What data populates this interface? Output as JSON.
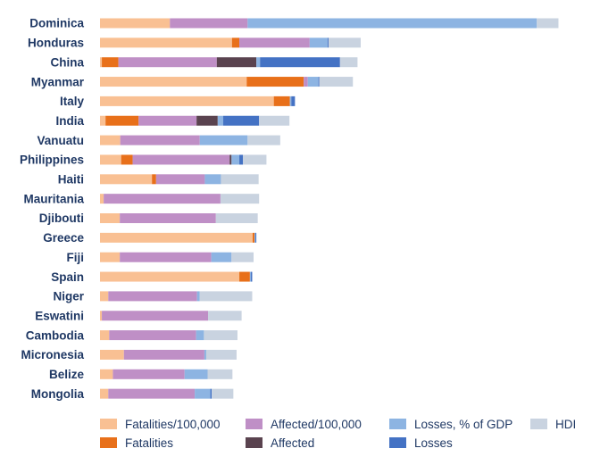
{
  "chart_data": {
    "type": "bar",
    "orientation": "horizontal",
    "stacked": true,
    "title": "",
    "xlabel": "",
    "ylabel": "",
    "grid": false,
    "legend_position": "bottom",
    "xlim": [
      0,
      100
    ],
    "categories": [
      "Dominica",
      "Honduras",
      "China",
      "Myanmar",
      "Italy",
      "India",
      "Vanuatu",
      "Philippines",
      "Haiti",
      "Mauritania",
      "Djibouti",
      "Greece",
      "Fiji",
      "Spain",
      "Niger",
      "Eswatini",
      "Cambodia",
      "Micronesia",
      "Belize",
      "Mongolia"
    ],
    "series": [
      {
        "name": "Fatalities/100,000",
        "color": "#f9c093",
        "values": [
          15.2,
          28.7,
          0.4,
          31.9,
          37.8,
          1.2,
          4.4,
          4.6,
          11.3,
          0.8,
          4.3,
          33.2,
          4.3,
          30.3,
          1.8,
          0.4,
          2.0,
          5.2,
          2.8,
          1.8
        ]
      },
      {
        "name": "Fatalities",
        "color": "#e8701a",
        "values": [
          0,
          1.6,
          3.6,
          12.4,
          3.5,
          7.2,
          0,
          2.5,
          0.9,
          0,
          0,
          0.4,
          0,
          2.3,
          0,
          0,
          0,
          0,
          0,
          0
        ]
      },
      {
        "name": "Affected/100,000",
        "color": "#bf8fc6",
        "values": [
          16.9,
          15.3,
          21.4,
          0.9,
          0,
          12.6,
          17.3,
          21.1,
          10.6,
          25.4,
          20.9,
          0,
          19.9,
          0,
          19.3,
          23.1,
          18.9,
          17.5,
          15.6,
          18.8
        ]
      },
      {
        "name": "Affected",
        "color": "#5a434f",
        "values": [
          0,
          0,
          8.6,
          0,
          0,
          4.6,
          0,
          0.4,
          0,
          0,
          0,
          0,
          0,
          0,
          0,
          0,
          0,
          0,
          0,
          0
        ]
      },
      {
        "name": "Losses, % of GDP",
        "color": "#8db4e2",
        "values": [
          62.9,
          3.9,
          0.8,
          2.3,
          0.3,
          1.2,
          10.4,
          1.7,
          3.5,
          0,
          0,
          0.2,
          4.4,
          0.2,
          0.6,
          0,
          1.7,
          0.4,
          5.0,
          3.4
        ]
      },
      {
        "name": "Losses",
        "color": "#4472c4",
        "values": [
          0,
          0.2,
          17.4,
          0.2,
          0.8,
          7.8,
          0,
          0.8,
          0,
          0,
          0,
          0.2,
          0,
          0.3,
          0,
          0,
          0,
          0,
          0,
          0.3
        ]
      },
      {
        "name": "HDI",
        "color": "#c9d3e0",
        "values": [
          4.7,
          7.0,
          3.8,
          7.3,
          0,
          6.6,
          7.1,
          5.1,
          8.2,
          8.4,
          9.1,
          0,
          4.8,
          0,
          11.4,
          7.3,
          7.3,
          6.6,
          5.4,
          4.7
        ]
      }
    ]
  }
}
